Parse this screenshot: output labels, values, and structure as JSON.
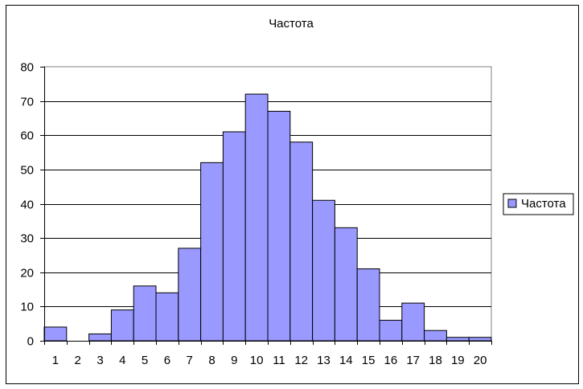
{
  "chart_data": {
    "type": "bar",
    "title": "Частота",
    "xlabel": "",
    "ylabel": "",
    "categories": [
      "1",
      "2",
      "3",
      "4",
      "5",
      "6",
      "7",
      "8",
      "9",
      "10",
      "11",
      "12",
      "13",
      "14",
      "15",
      "16",
      "17",
      "18",
      "19",
      "20"
    ],
    "series": [
      {
        "name": "Частота",
        "values": [
          4,
          0,
          2,
          9,
          16,
          14,
          27,
          52,
          61,
          72,
          67,
          58,
          41,
          33,
          21,
          6,
          11,
          3,
          1,
          1
        ]
      }
    ],
    "ylim": [
      0,
      80
    ],
    "yticks": [
      0,
      10,
      20,
      30,
      40,
      50,
      60,
      70,
      80
    ],
    "grid": true,
    "legend_position": "right",
    "colors": {
      "bar_fill": "#9999ff",
      "bar_stroke": "#000000",
      "gridline": "#000000",
      "plot_border": "#808080"
    }
  }
}
